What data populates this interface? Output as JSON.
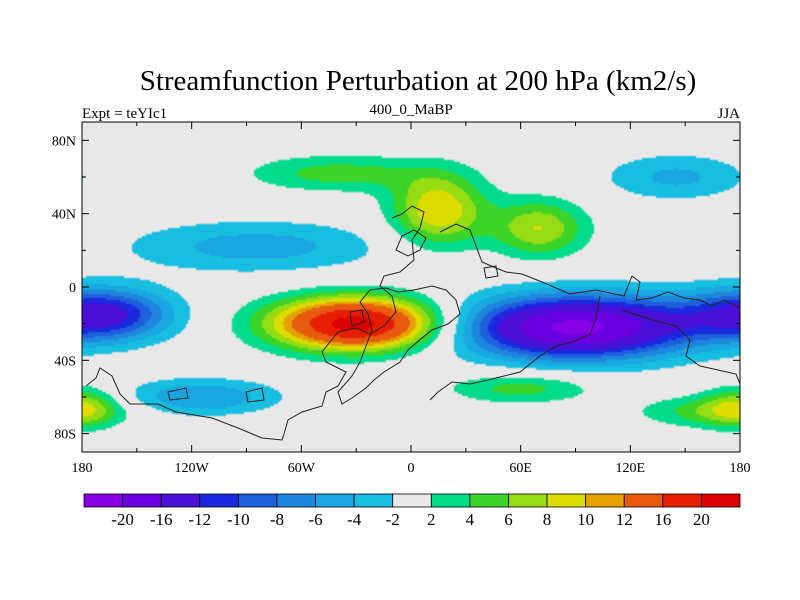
{
  "chart_data": {
    "type": "heatmap",
    "title": "Streamfunction Perturbation at 200 hPa (km2/s)",
    "subtitle_left": "Expt = teYIc1",
    "subtitle_center": "400_0_MaBP",
    "subtitle_right": "JJA",
    "xlim": [
      -180,
      180
    ],
    "ylim": [
      -90,
      90
    ],
    "x_ticks": [
      {
        "value": -180,
        "label": "180"
      },
      {
        "value": -120,
        "label": "120W"
      },
      {
        "value": -60,
        "label": "60W"
      },
      {
        "value": 0,
        "label": "0"
      },
      {
        "value": 60,
        "label": "60E"
      },
      {
        "value": 120,
        "label": "120E"
      },
      {
        "value": 180,
        "label": "180"
      }
    ],
    "y_ticks": [
      {
        "value": 80,
        "label": "80N"
      },
      {
        "value": 40,
        "label": "40N"
      },
      {
        "value": 0,
        "label": "0"
      },
      {
        "value": -40,
        "label": "40S"
      },
      {
        "value": -80,
        "label": "80S"
      }
    ],
    "levels": [
      -20,
      -16,
      -12,
      -10,
      -8,
      -6,
      -4,
      -2,
      2,
      4,
      6,
      8,
      10,
      12,
      16,
      20
    ],
    "level_labels": [
      "-20",
      "-16",
      "-12",
      "-10",
      "-8",
      "-6",
      "-4",
      "-2",
      "2",
      "4",
      "6",
      "8",
      "10",
      "12",
      "16",
      "20"
    ],
    "colors": [
      "#8a00e6",
      "#6a00e0",
      "#4a10d8",
      "#1a28e0",
      "#1e60dc",
      "#1e86dc",
      "#1aa6e0",
      "#18bee0",
      "#e8e8e8",
      "#00dc8c",
      "#3cd428",
      "#96dc14",
      "#dcdc00",
      "#e6a000",
      "#e85a10",
      "#e61e00",
      "#dc0000"
    ],
    "background": "#e8e8e8",
    "features": [
      {
        "name": "nh-positive-tongue",
        "lon": -40,
        "lat": 62,
        "sx": 34,
        "sy": 7,
        "amp": 5
      },
      {
        "name": "eurasia-positive",
        "lon": 15,
        "lat": 42,
        "sx": 18,
        "sy": 14,
        "amp": 10
      },
      {
        "name": "caspian-positive",
        "lon": 70,
        "lat": 32,
        "sx": 18,
        "sy": 11,
        "amp": 8
      },
      {
        "name": "north-pacific-negative",
        "lon": 145,
        "lat": 60,
        "sx": 28,
        "sy": 9,
        "amp": -4.5
      },
      {
        "name": "north-atlantic-negative",
        "lon": -85,
        "lat": 22,
        "sx": 50,
        "sy": 10,
        "amp": -5
      },
      {
        "name": "southern-positive-max",
        "lon": -30,
        "lat": -20,
        "sx": 32,
        "sy": 10,
        "amp": 22
      },
      {
        "name": "southern-negative-min",
        "lon": 90,
        "lat": -22,
        "sx": 44,
        "sy": 12,
        "amp": -21
      },
      {
        "name": "pacific-negative-west",
        "lon": -165,
        "lat": -15,
        "sx": 24,
        "sy": 10,
        "amp": -8
      },
      {
        "name": "pacific-negative-east",
        "lon": 180,
        "lat": -15,
        "sx": 30,
        "sy": 10,
        "amp": -6
      },
      {
        "name": "indian-positive",
        "lon": 60,
        "lat": -55,
        "sx": 28,
        "sy": 6,
        "amp": 5
      },
      {
        "name": "south-pacific-positive",
        "lon": 165,
        "lat": -68,
        "sx": 28,
        "sy": 6,
        "amp": 5
      },
      {
        "name": "south-pacific-negative",
        "lon": -115,
        "lat": -60,
        "sx": 30,
        "sy": 7,
        "amp": -6
      },
      {
        "name": "southwest-positive",
        "lon": -180,
        "lat": -65,
        "sx": 14,
        "sy": 8,
        "amp": 6
      }
    ]
  }
}
